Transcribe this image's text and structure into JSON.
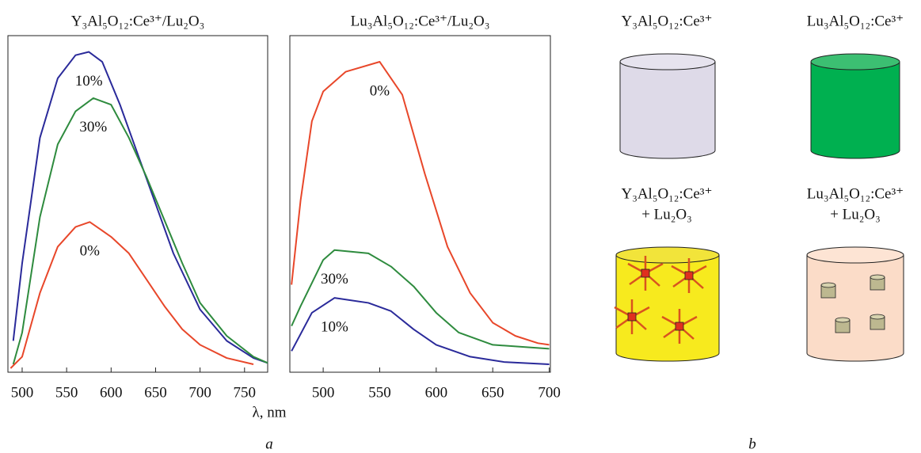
{
  "chart_data": [
    {
      "type": "line",
      "title": "Y₃Al₅O₁₂:Ce³⁺/Lu₂O₃",
      "xlim": [
        484,
        776
      ],
      "ylim": [
        0,
        100
      ],
      "xticks": [
        500,
        550,
        600,
        650,
        700,
        750
      ],
      "series": [
        {
          "name": "10%",
          "color": "#2a2a9a",
          "x": [
            490,
            500,
            520,
            540,
            560,
            575,
            590,
            610,
            630,
            650,
            670,
            700,
            730,
            760,
            776
          ],
          "values": [
            9.5,
            33,
            71,
            89,
            96,
            97,
            94,
            81,
            66,
            51,
            36,
            19,
            9.5,
            4.3,
            2.8
          ]
        },
        {
          "name": "30%",
          "color": "#2e8b3e",
          "x": [
            490,
            500,
            520,
            540,
            560,
            580,
            600,
            620,
            640,
            660,
            680,
            700,
            730,
            760,
            776
          ],
          "values": [
            2.4,
            12,
            47,
            69,
            79,
            83,
            81,
            71,
            59,
            46,
            33,
            21,
            11,
            4.7,
            2.8
          ]
        },
        {
          "name": "0%",
          "color": "#e8472a",
          "x": [
            487,
            500,
            520,
            540,
            560,
            576,
            600,
            620,
            640,
            660,
            680,
            700,
            730,
            760
          ],
          "values": [
            1.2,
            4.7,
            24,
            38,
            44,
            45.5,
            41,
            36,
            28,
            20,
            13,
            8.3,
            4.3,
            2.4
          ]
        }
      ]
    },
    {
      "type": "line",
      "title": "Lu₃Al₅O₁₂:Ce³⁺/Lu₂O₃",
      "xlim": [
        470.5,
        701
      ],
      "ylim": [
        0,
        100
      ],
      "xticks": [
        500,
        550,
        600,
        650,
        700
      ],
      "series": [
        {
          "name": "0%",
          "color": "#e8472a",
          "x": [
            472,
            480,
            490,
            500,
            520,
            550,
            570,
            590,
            610,
            630,
            650,
            670,
            690,
            700
          ],
          "values": [
            26.5,
            52,
            76,
            85,
            91,
            94,
            84,
            60,
            38,
            24,
            15,
            11,
            8.8,
            8.3
          ]
        },
        {
          "name": "30%",
          "color": "#2e8b3e",
          "x": [
            472,
            480,
            500,
            510,
            540,
            560,
            580,
            600,
            620,
            650,
            700
          ],
          "values": [
            14,
            20,
            34,
            37,
            36,
            32,
            26,
            18,
            12,
            8.3,
            7.1
          ]
        },
        {
          "name": "10%",
          "color": "#2a2a9a",
          "x": [
            472,
            490,
            510,
            540,
            560,
            580,
            600,
            630,
            660,
            700
          ],
          "values": [
            6.4,
            18,
            22.5,
            21,
            18.5,
            13,
            8.3,
            4.7,
            3.1,
            2.4
          ]
        }
      ]
    }
  ],
  "xlabel": "λ, nm",
  "panel_a": "a",
  "panel_b": "b",
  "diagram": {
    "top_left": "Y₃Al₅O₁₂:Ce³⁺",
    "top_right": "Lu₃Al₅O₁₂:Ce³⁺",
    "bottom_left": [
      "Y₃Al₅O₁₂:Ce³⁺",
      "+ Lu₂O₃"
    ],
    "bottom_right": [
      "Lu₃Al₅O₁₂:Ce³⁺",
      "+ Lu₂O₃"
    ]
  }
}
